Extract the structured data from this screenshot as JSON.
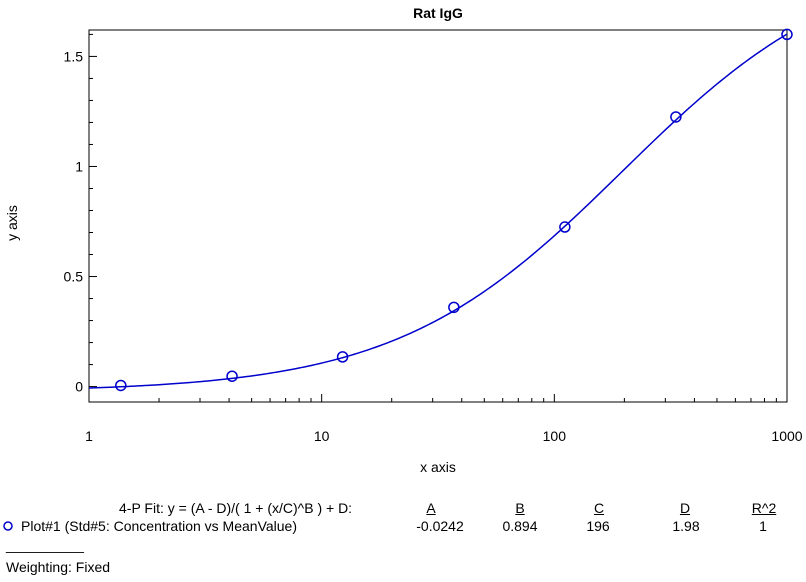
{
  "chart_data": {
    "type": "scatter",
    "title": "Rat IgG",
    "xlabel": "x axis",
    "ylabel": "y axis",
    "x_scale": "log",
    "xlim": [
      1,
      1000
    ],
    "ylim": [
      -0.07,
      1.62
    ],
    "x_ticks": [
      1,
      10,
      100,
      1000
    ],
    "x_tick_labels": [
      "1",
      "10",
      "100",
      "1000"
    ],
    "y_ticks": [
      0,
      0.5,
      1,
      1.5
    ],
    "y_tick_labels": [
      "0",
      "0.5",
      "1",
      "1.5"
    ],
    "grid": false,
    "series": [
      {
        "name": "Plot#1 (Std#5: Concentration vs MeanValue)",
        "color": "#0000cc",
        "marker": "circle",
        "x": [
          1.37,
          4.12,
          12.3,
          37.0,
          111,
          333,
          1000
        ],
        "y": [
          0.005,
          0.047,
          0.135,
          0.36,
          0.725,
          1.225,
          1.6
        ]
      }
    ],
    "fit": {
      "equation": "4-P Fit: y = (A - D)/( 1 + (x/C)^B ) + D:",
      "headers": [
        "A",
        "B",
        "C",
        "D",
        "R^2"
      ],
      "values": [
        "-0.0242",
        "0.894",
        "196",
        "1.98",
        "1"
      ],
      "params": {
        "A": -0.0242,
        "B": 0.894,
        "C": 196,
        "D": 1.98
      }
    }
  },
  "footer": {
    "separator": "__________",
    "weighting": "Weighting: Fixed"
  }
}
